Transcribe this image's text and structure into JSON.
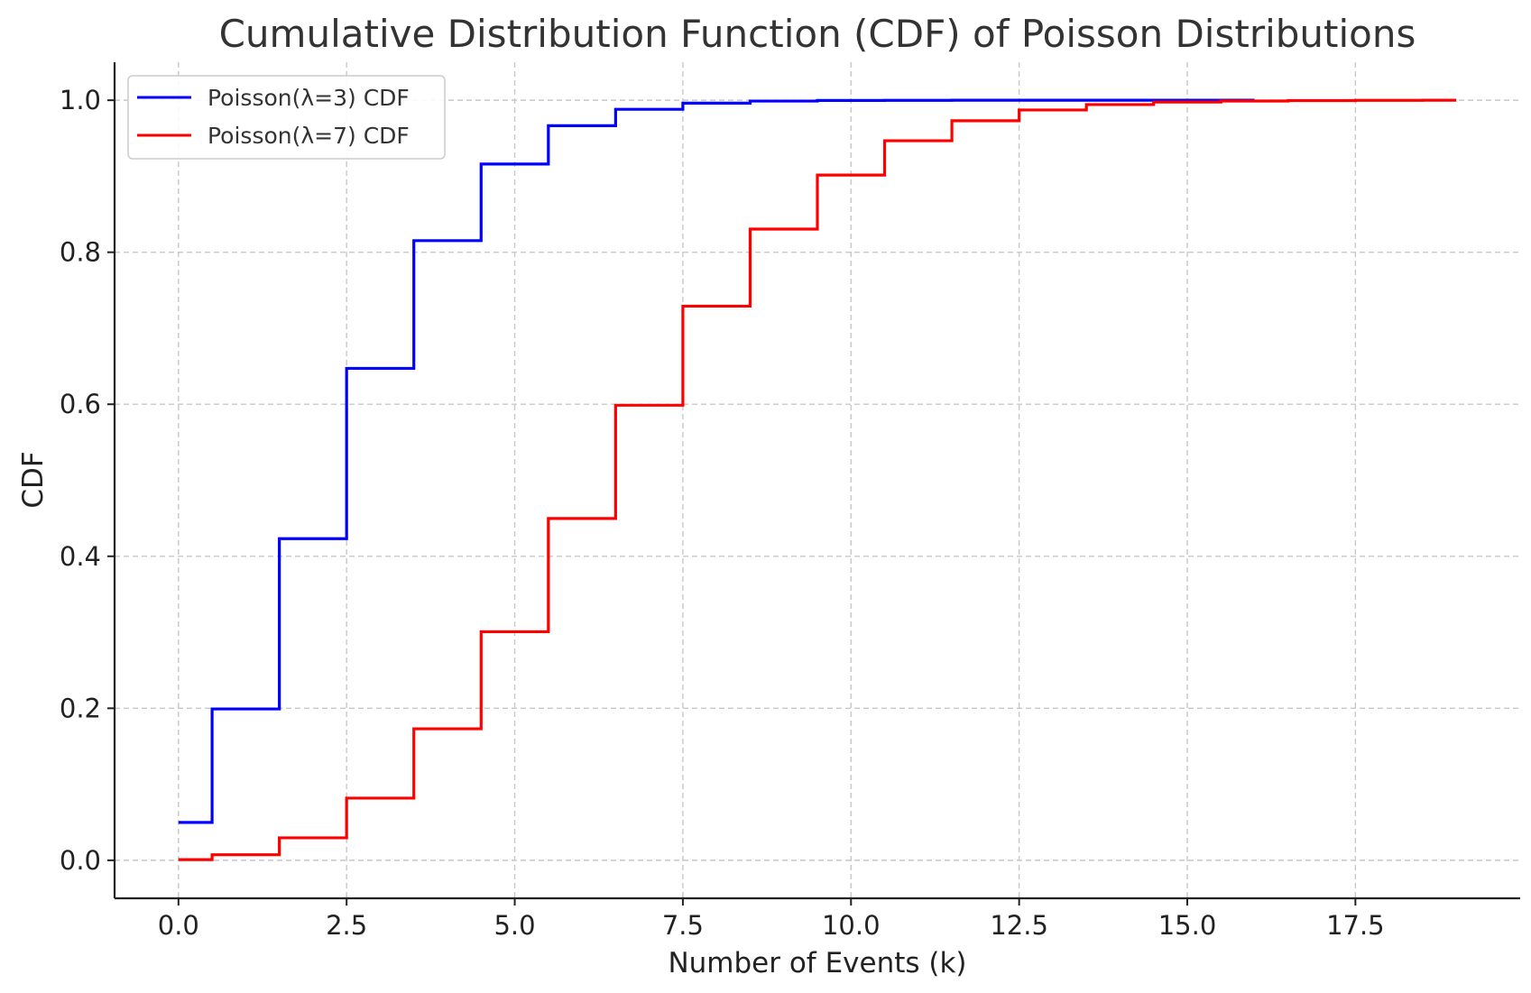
{
  "chart_data": {
    "type": "line",
    "step": "mid",
    "title": "Cumulative Distribution Function (CDF) of Poisson Distributions",
    "xlabel": "Number of Events (k)",
    "ylabel": "CDF",
    "xlim": [
      -0.95,
      19.95
    ],
    "ylim": [
      -0.05,
      1.05
    ],
    "xticks": [
      0.0,
      2.5,
      5.0,
      7.5,
      10.0,
      12.5,
      15.0,
      17.5
    ],
    "xtick_labels": [
      "0.0",
      "2.5",
      "5.0",
      "7.5",
      "10.0",
      "12.5",
      "15.0",
      "17.5"
    ],
    "yticks": [
      0.0,
      0.2,
      0.4,
      0.6,
      0.8,
      1.0
    ],
    "ytick_labels": [
      "0.0",
      "0.2",
      "0.4",
      "0.6",
      "0.8",
      "1.0"
    ],
    "grid": true,
    "legend_position": "upper-left",
    "series": [
      {
        "name": "Poisson(λ=3) CDF",
        "color": "#0000ff",
        "x": [
          0,
          1,
          2,
          3,
          4,
          5,
          6,
          7,
          8,
          9,
          10,
          11,
          12,
          13,
          14,
          15,
          16
        ],
        "values": [
          0.0498,
          0.1991,
          0.4232,
          0.6472,
          0.8153,
          0.9161,
          0.9665,
          0.9881,
          0.9962,
          0.9989,
          0.9997,
          0.9999,
          1.0,
          1.0,
          1.0,
          1.0,
          1.0
        ]
      },
      {
        "name": "Poisson(λ=7) CDF",
        "color": "#ff0000",
        "x": [
          0,
          1,
          2,
          3,
          4,
          5,
          6,
          7,
          8,
          9,
          10,
          11,
          12,
          13,
          14,
          15,
          16,
          17,
          18,
          19
        ],
        "values": [
          0.0009,
          0.0073,
          0.0296,
          0.0818,
          0.173,
          0.3007,
          0.4497,
          0.5987,
          0.7291,
          0.8305,
          0.9015,
          0.9467,
          0.973,
          0.9872,
          0.9943,
          0.9976,
          0.999,
          0.9996,
          0.9999,
          1.0
        ]
      }
    ]
  }
}
